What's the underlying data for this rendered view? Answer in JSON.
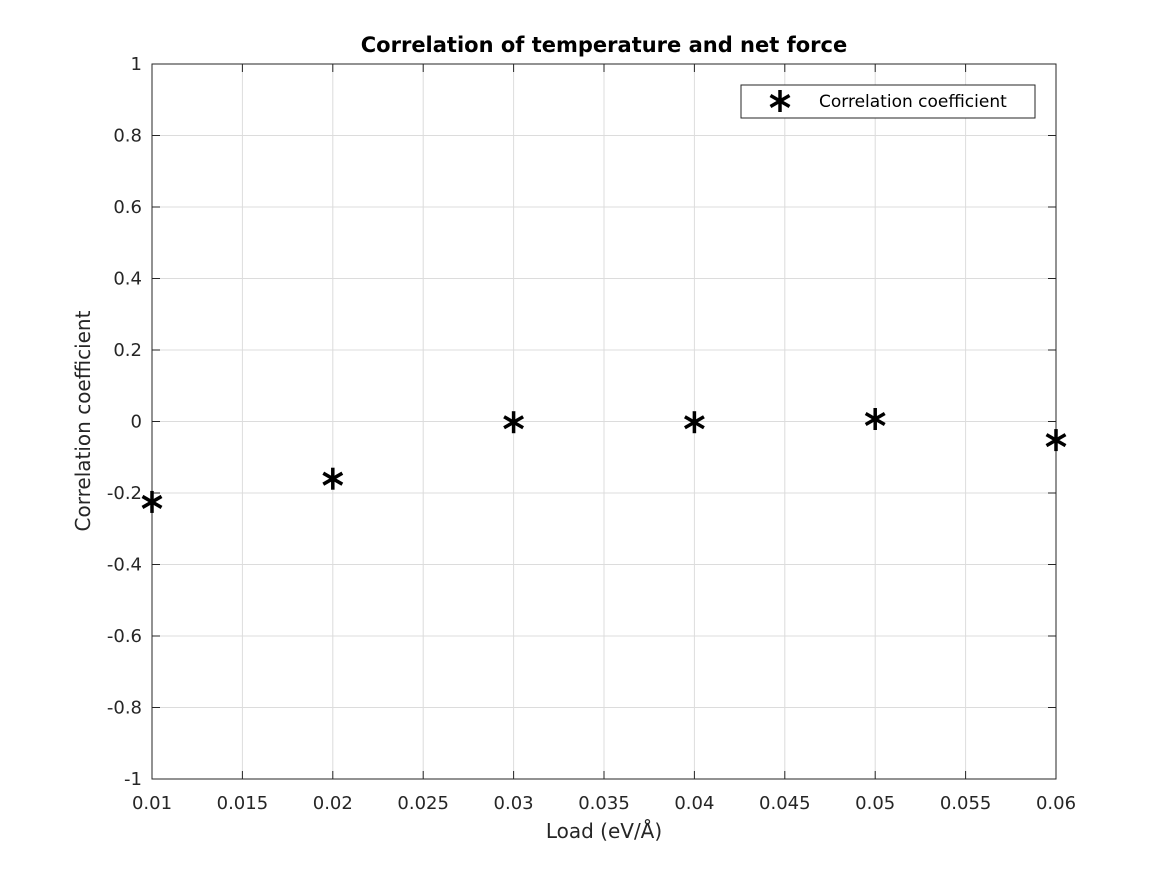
{
  "chart_data": {
    "type": "scatter",
    "title": "Correlation of temperature and net force",
    "xlabel": "Load (eV/Å)",
    "ylabel": "Correlation coefficient",
    "xlim": [
      0.01,
      0.06
    ],
    "ylim": [
      -1,
      1
    ],
    "xticks": [
      0.01,
      0.015,
      0.02,
      0.025,
      0.03,
      0.035,
      0.04,
      0.045,
      0.05,
      0.055,
      0.06
    ],
    "xtick_labels": [
      "0.01",
      "0.015",
      "0.02",
      "0.025",
      "0.03",
      "0.035",
      "0.04",
      "0.045",
      "0.05",
      "0.055",
      "0.06"
    ],
    "yticks": [
      -1,
      -0.8,
      -0.6,
      -0.4,
      -0.2,
      0,
      0.2,
      0.4,
      0.6,
      0.8,
      1
    ],
    "ytick_labels": [
      "-1",
      "-0.8",
      "-0.6",
      "-0.4",
      "-0.2",
      "0",
      "0.2",
      "0.4",
      "0.6",
      "0.8",
      "1"
    ],
    "grid": true,
    "legend_position": "top-right",
    "series": [
      {
        "name": "Correlation coefficient",
        "marker": "asterisk",
        "color": "#000000",
        "x": [
          0.01,
          0.02,
          0.03,
          0.04,
          0.05,
          0.06
        ],
        "y": [
          -0.225,
          -0.16,
          -0.002,
          -0.002,
          0.007,
          -0.052
        ]
      }
    ]
  }
}
